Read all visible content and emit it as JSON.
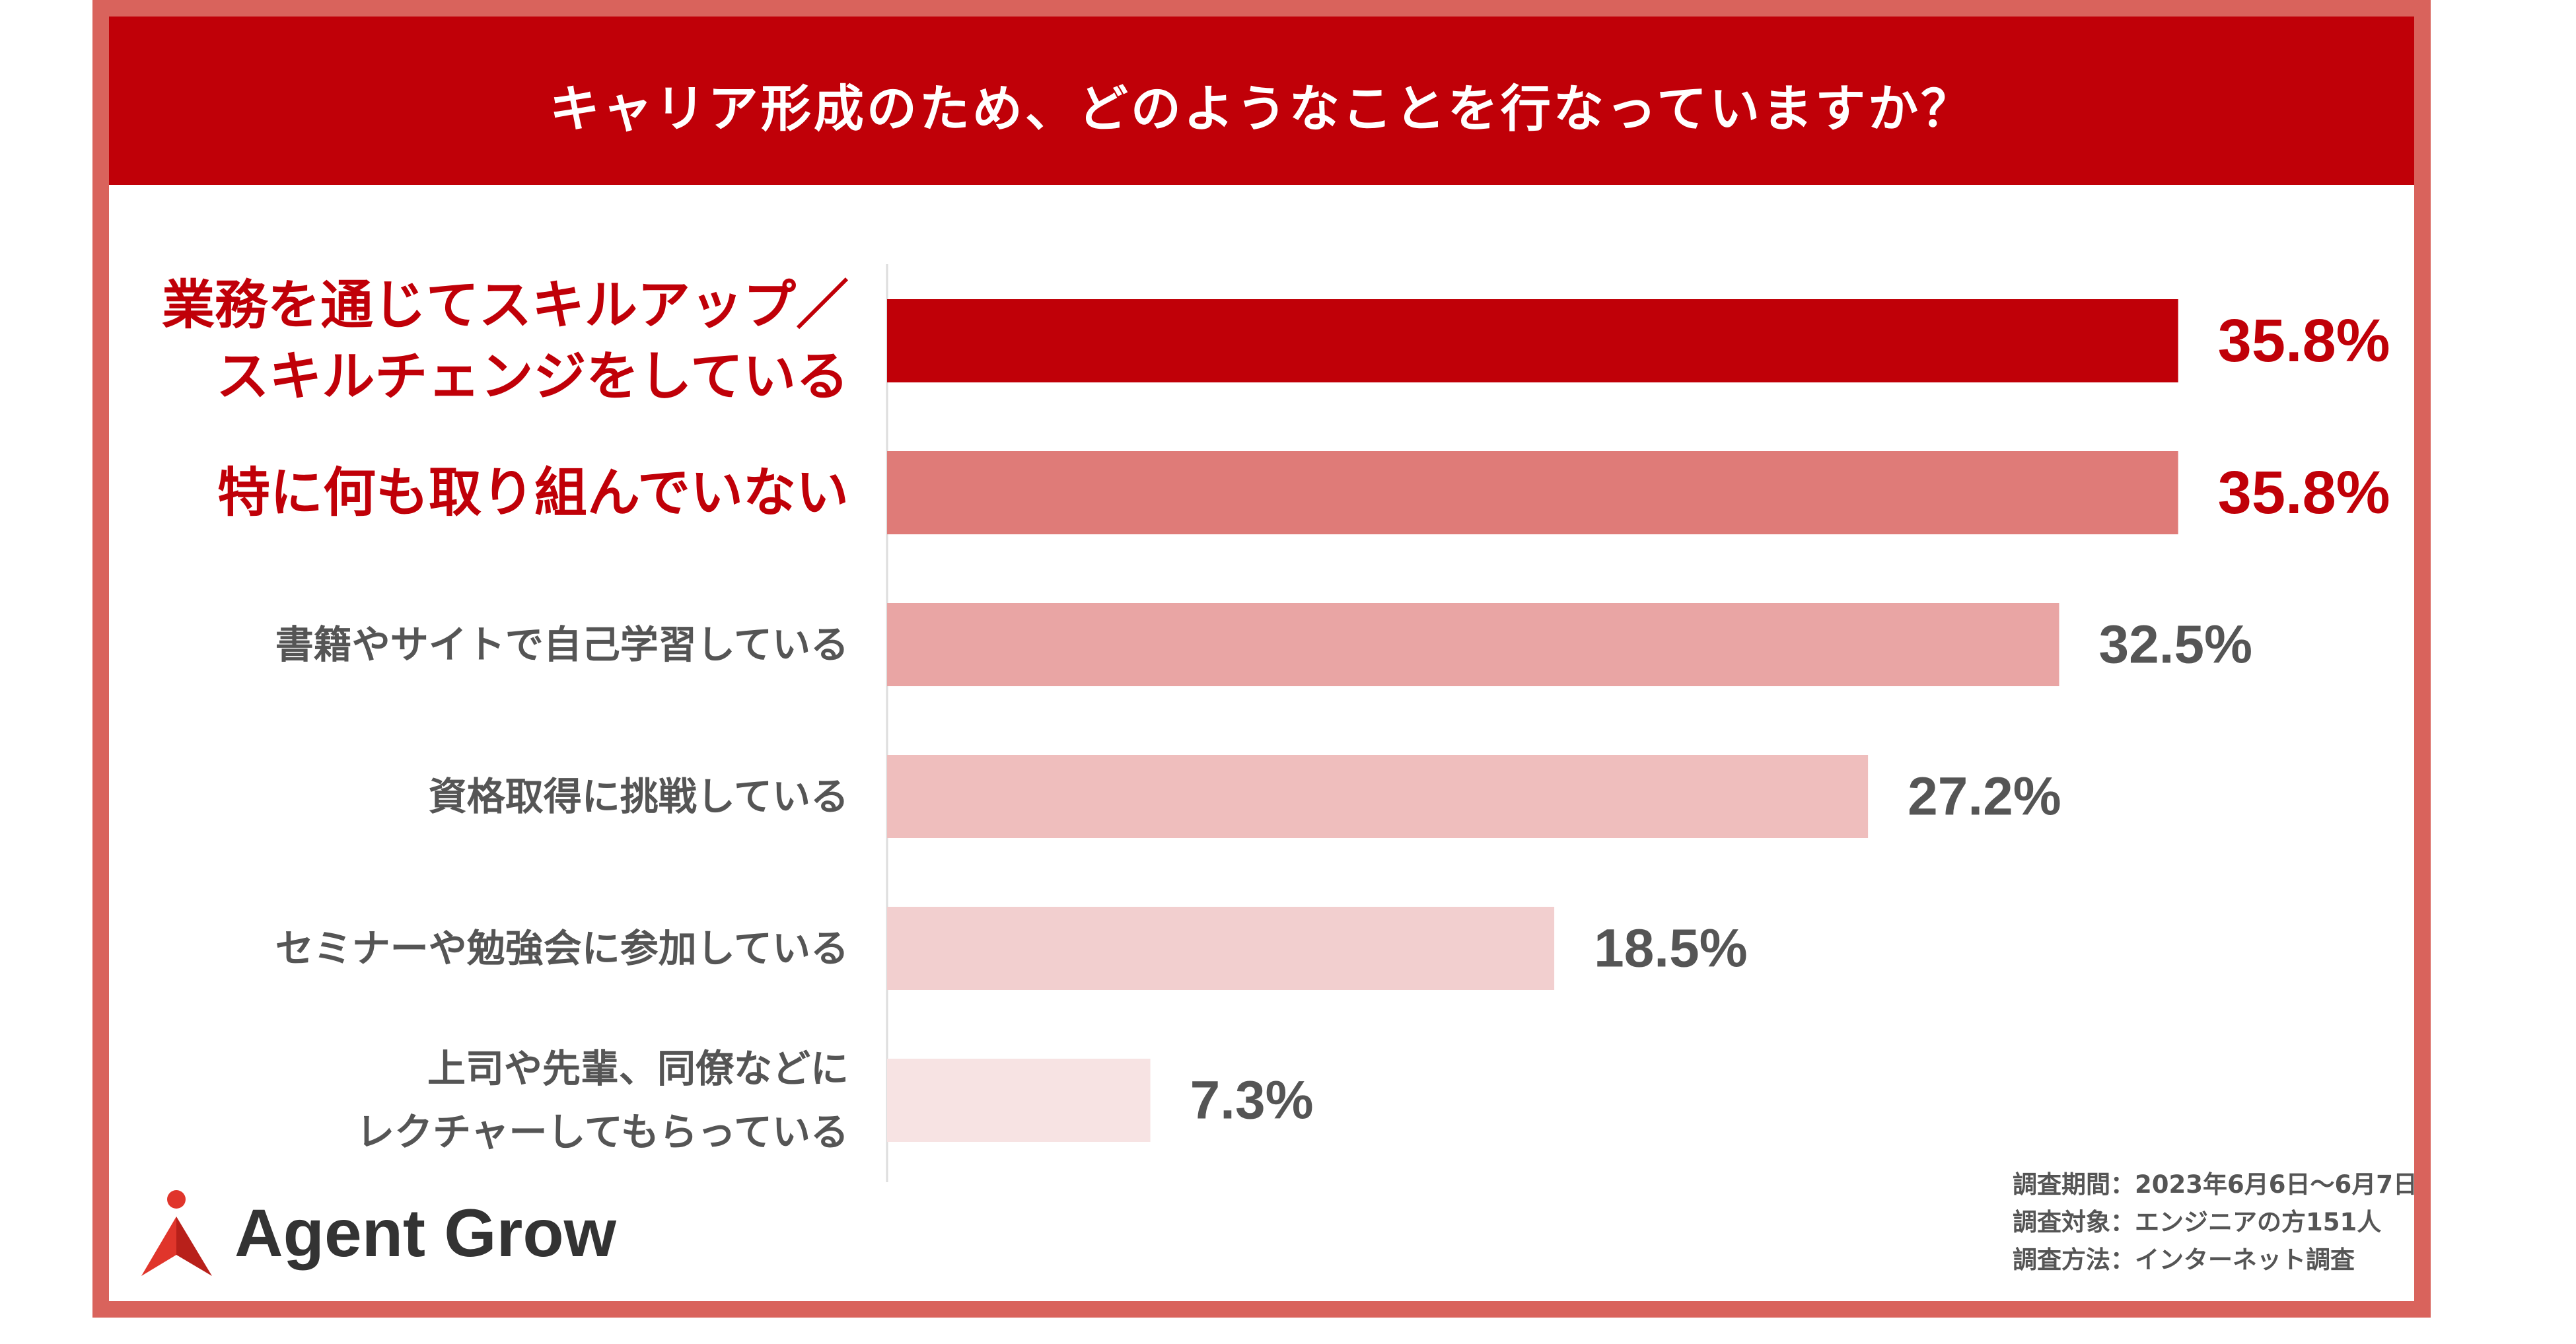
{
  "title": "キャリア形成のため、どのようなことを行なっていますか？",
  "brand": {
    "name": "Agent Grow",
    "logo_color": "#e0352b"
  },
  "colors": {
    "title_bg": "#c00008",
    "frame": "#d9635c",
    "highlight_text": "#c00008",
    "normal_text": "#555555"
  },
  "chart_data": {
    "type": "bar",
    "orientation": "horizontal",
    "unit": "%",
    "xlim": [
      0,
      40
    ],
    "grid": false,
    "categories": [
      [
        "業務を通じてスキルアップ／",
        "スキルチェンジをしている"
      ],
      [
        "特に何も取り組んでいない"
      ],
      [
        "書籍やサイトで自己学習している"
      ],
      [
        "資格取得に挑戦している"
      ],
      [
        "セミナーや勉強会に参加している"
      ],
      [
        "上司や先輩、同僚などに",
        "レクチャーしてもらっている"
      ]
    ],
    "values": [
      35.8,
      35.8,
      32.5,
      27.2,
      18.5,
      7.3
    ],
    "value_labels": [
      "35.8%",
      "35.8%",
      "32.5%",
      "27.2%",
      "18.5%",
      "7.3%"
    ],
    "highlighted": [
      true,
      true,
      false,
      false,
      false,
      false
    ],
    "bar_colors": [
      "#c00008",
      "#df7b78",
      "#e9a5a4",
      "#efbebd",
      "#f2cfcf",
      "#f7e3e3"
    ]
  },
  "footnote": {
    "lines": [
      "調査期間：2023年6月6日〜6月7日",
      "調査対象：エンジニアの方151人",
      "調査方法：インターネット調査"
    ]
  }
}
